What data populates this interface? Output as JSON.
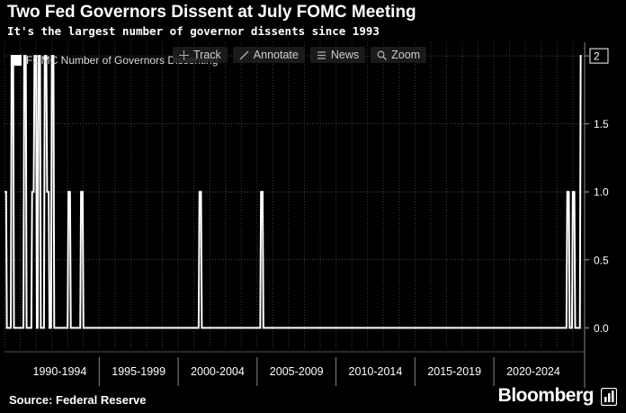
{
  "header": {
    "title": "Two Fed Governors Dissent at July FOMC Meeting",
    "subtitle": "It's the largest number of governor dissents since 1993"
  },
  "legend": {
    "label": "FOMC Number of Governors Dissenting"
  },
  "toolbar": {
    "track_label": "Track",
    "annotate_label": "Annotate",
    "news_label": "News",
    "zoom_label": "Zoom"
  },
  "footer": {
    "source": "Source: Federal Reserve",
    "brand": "Bloomberg"
  },
  "chart_data": {
    "type": "line",
    "title": "Two Fed Governors Dissent at July FOMC Meeting",
    "subtitle": "It's the largest number of governor dissents since 1993",
    "xlabel": "",
    "ylabel": "",
    "xlim": [
      1989.0,
      2025.75
    ],
    "ylim": [
      -0.15,
      2.1
    ],
    "y_ticks": [
      0.0,
      0.5,
      1.0,
      1.5,
      2
    ],
    "y_tick_labels": [
      "0.0",
      "0.5",
      "1.0",
      "1.5",
      "2"
    ],
    "x_tick_labels": [
      "1990-1994",
      "1995-1999",
      "2000-2004",
      "2005-2009",
      "2010-2014",
      "2015-2019",
      "2020-2024"
    ],
    "last_value_label": "2",
    "grid": true,
    "series": [
      {
        "name": "FOMC Number of Governors Dissenting",
        "color": "#ffffff",
        "points": [
          [
            1989.0,
            1
          ],
          [
            1989.1,
            1
          ],
          [
            1989.15,
            0
          ],
          [
            1989.4,
            0
          ],
          [
            1989.45,
            2
          ],
          [
            1989.55,
            2
          ],
          [
            1989.6,
            0
          ],
          [
            1990.2,
            0
          ],
          [
            1990.25,
            2
          ],
          [
            1990.35,
            2
          ],
          [
            1990.4,
            0
          ],
          [
            1990.7,
            0
          ],
          [
            1990.75,
            1
          ],
          [
            1990.85,
            1
          ],
          [
            1990.9,
            2
          ],
          [
            1991.0,
            2
          ],
          [
            1991.05,
            0
          ],
          [
            1991.1,
            0
          ],
          [
            1991.15,
            2
          ],
          [
            1991.25,
            2
          ],
          [
            1991.3,
            0
          ],
          [
            1991.5,
            0
          ],
          [
            1991.55,
            2
          ],
          [
            1991.65,
            2
          ],
          [
            1991.7,
            1
          ],
          [
            1991.8,
            1
          ],
          [
            1991.85,
            0
          ],
          [
            1991.95,
            0
          ],
          [
            1992.0,
            2
          ],
          [
            1992.1,
            2
          ],
          [
            1992.15,
            0
          ],
          [
            1993.0,
            0
          ],
          [
            1993.05,
            1
          ],
          [
            1993.15,
            1
          ],
          [
            1993.2,
            0
          ],
          [
            1993.8,
            0
          ],
          [
            1993.85,
            1
          ],
          [
            1993.95,
            1
          ],
          [
            1994.0,
            0
          ],
          [
            2001.3,
            0
          ],
          [
            2001.35,
            1
          ],
          [
            2001.45,
            1
          ],
          [
            2001.5,
            0
          ],
          [
            2005.2,
            0
          ],
          [
            2005.25,
            1
          ],
          [
            2005.35,
            1
          ],
          [
            2005.4,
            0
          ],
          [
            2024.6,
            0
          ],
          [
            2024.65,
            1
          ],
          [
            2024.75,
            1
          ],
          [
            2024.8,
            0
          ],
          [
            2024.95,
            0
          ],
          [
            2025.0,
            1
          ],
          [
            2025.1,
            1
          ],
          [
            2025.15,
            0
          ],
          [
            2025.45,
            0
          ],
          [
            2025.5,
            2
          ],
          [
            2025.56,
            2
          ]
        ]
      }
    ]
  }
}
